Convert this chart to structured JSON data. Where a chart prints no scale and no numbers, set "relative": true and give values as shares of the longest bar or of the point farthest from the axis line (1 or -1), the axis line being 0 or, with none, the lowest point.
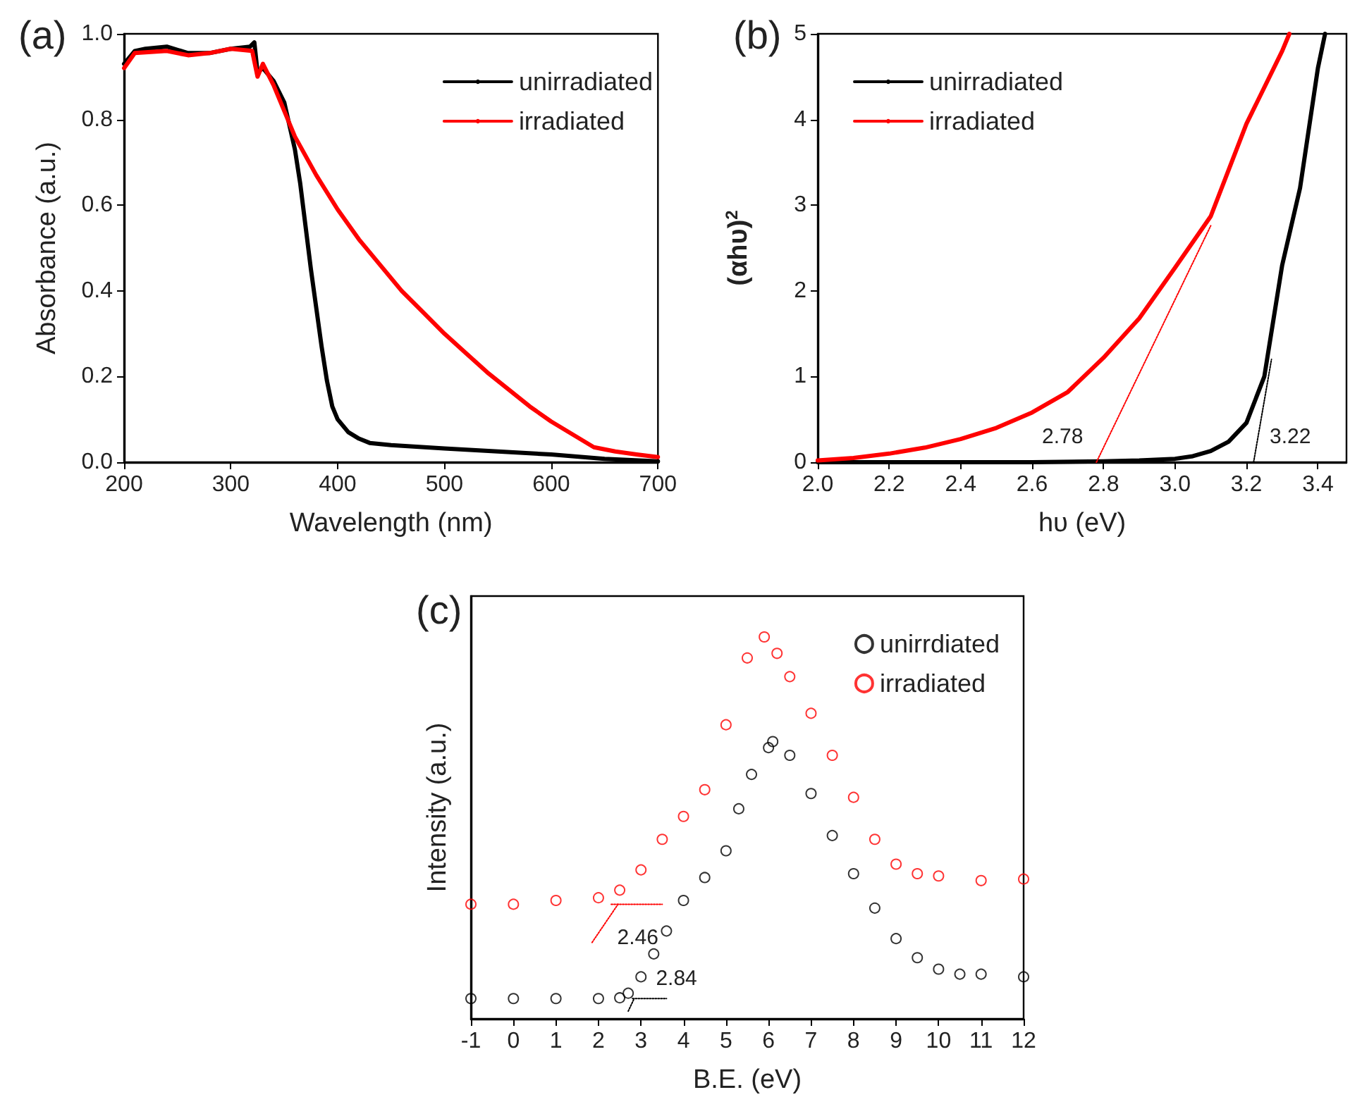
{
  "chart_data": [
    {
      "type": "line",
      "title": "(a)",
      "xlabel": "Wavelength (nm)",
      "ylabel": "Absorbance (a.u.)",
      "xlim": [
        200,
        700
      ],
      "ylim": [
        0,
        1.0
      ],
      "xticks": [
        200,
        300,
        400,
        500,
        600,
        700
      ],
      "yticks": [
        {
          "value": 0,
          "label": "0.0"
        },
        {
          "value": 0.2,
          "label": "0.2"
        },
        {
          "value": 0.4,
          "label": "0.4"
        },
        {
          "value": 0.6,
          "label": "0.6"
        },
        {
          "value": 0.8,
          "label": "0.8"
        },
        {
          "value": 1.0,
          "label": "1.0"
        }
      ],
      "legend": "top right",
      "series": [
        {
          "name": "unirradiated",
          "color": "#000000",
          "x": [
            200,
            210,
            220,
            240,
            260,
            280,
            300,
            318,
            322,
            325,
            330,
            340,
            350,
            360,
            365,
            370,
            375,
            380,
            385,
            390,
            395,
            400,
            410,
            420,
            430,
            450,
            500,
            550,
            600,
            650,
            700
          ],
          "values": [
            0.93,
            0.96,
            0.965,
            0.97,
            0.955,
            0.955,
            0.965,
            0.97,
            0.98,
            0.91,
            0.92,
            0.89,
            0.84,
            0.73,
            0.65,
            0.55,
            0.45,
            0.36,
            0.27,
            0.19,
            0.13,
            0.1,
            0.07,
            0.055,
            0.045,
            0.04,
            0.032,
            0.025,
            0.018,
            0.008,
            0.002
          ]
        },
        {
          "name": "irradiated",
          "color": "#ff0000",
          "x": [
            200,
            210,
            240,
            260,
            280,
            300,
            320,
            325,
            330,
            340,
            350,
            360,
            380,
            400,
            420,
            440,
            460,
            480,
            500,
            520,
            540,
            560,
            580,
            600,
            620,
            640,
            660,
            680,
            700
          ],
          "values": [
            0.92,
            0.955,
            0.96,
            0.95,
            0.955,
            0.965,
            0.96,
            0.9,
            0.93,
            0.88,
            0.82,
            0.76,
            0.67,
            0.59,
            0.52,
            0.46,
            0.4,
            0.35,
            0.3,
            0.255,
            0.21,
            0.17,
            0.13,
            0.095,
            0.065,
            0.035,
            0.025,
            0.018,
            0.012
          ]
        }
      ]
    },
    {
      "type": "line",
      "title": "(b)",
      "xlabel": "hυ (eV)",
      "ylabel": "(αhυ)$^{2}$",
      "xlim": [
        2.0,
        3.48
      ],
      "ylim": [
        0,
        5
      ],
      "xticks": [
        {
          "value": 2.0,
          "label": "2.0"
        },
        2.2,
        2.4,
        2.6,
        2.8,
        {
          "value": 3.0,
          "label": "3.0"
        },
        3.2,
        3.4
      ],
      "yticks": [
        0,
        1,
        2,
        3,
        4,
        5
      ],
      "legend": "top left",
      "annotations": [
        {
          "text": "2.78",
          "x": 2.78,
          "y": 0
        },
        {
          "text": "3.22",
          "x": 3.22,
          "y": 0
        }
      ],
      "series": [
        {
          "name": "unirradiated",
          "color": "#000000",
          "x": [
            2.0,
            2.6,
            2.8,
            2.9,
            3.0,
            3.05,
            3.1,
            3.15,
            3.2,
            3.25,
            3.3,
            3.35,
            3.4,
            3.42
          ],
          "values": [
            0,
            0,
            0.01,
            0.02,
            0.04,
            0.07,
            0.13,
            0.24,
            0.46,
            1.0,
            2.3,
            3.2,
            4.6,
            5.0
          ]
        },
        {
          "name": "irradiated",
          "color": "#ff0000",
          "x": [
            2.0,
            2.1,
            2.2,
            2.3,
            2.4,
            2.5,
            2.6,
            2.7,
            2.8,
            2.9,
            3.0,
            3.1,
            3.2,
            3.3,
            3.32
          ],
          "values": [
            0.02,
            0.05,
            0.1,
            0.17,
            0.27,
            0.4,
            0.58,
            0.82,
            1.22,
            1.68,
            2.27,
            2.87,
            3.95,
            4.8,
            5.0
          ]
        },
        {
          "type": "line",
          "line_style": "dotted",
          "color": "#ff0000",
          "x": [
            2.78,
            3.1
          ],
          "values": [
            0,
            2.76
          ]
        },
        {
          "type": "line",
          "line_style": "dotted",
          "color": "#000000",
          "x": [
            3.22,
            3.27
          ],
          "values": [
            0,
            1.2
          ]
        }
      ]
    },
    {
      "type": "scatter",
      "title": "(c)",
      "xlabel": "B.E. (eV)",
      "ylabel": "Intensity (a.u.)",
      "relative": true,
      "xlim": [
        -1,
        12
      ],
      "xticks": [
        -1,
        0,
        1,
        2,
        3,
        4,
        5,
        6,
        7,
        8,
        9,
        10,
        11,
        12
      ],
      "legend": "top right",
      "annotations": [
        {
          "text": "2.46",
          "x": 2.46,
          "y": 0.3
        },
        {
          "text": "2.84",
          "x": 2.84,
          "y": 0.053
        }
      ],
      "series": [
        {
          "name": "unirrdiated",
          "color": "#000000",
          "marker": "circle",
          "x": [
            -1,
            0,
            1,
            2,
            2.5,
            2.7,
            3.0,
            3.3,
            3.6,
            4.0,
            4.5,
            5.0,
            5.3,
            5.6,
            6.0,
            6.1,
            6.5,
            7.0,
            7.5,
            8.0,
            8.5,
            9.0,
            9.5,
            10,
            10.5,
            11,
            12
          ],
          "values": [
            0.053,
            0.053,
            0.053,
            0.053,
            0.055,
            0.067,
            0.11,
            0.17,
            0.23,
            0.31,
            0.37,
            0.44,
            0.55,
            0.64,
            0.71,
            0.726,
            0.69,
            0.59,
            0.48,
            0.38,
            0.29,
            0.21,
            0.16,
            0.13,
            0.117,
            0.117,
            0.11
          ]
        },
        {
          "name": "irradiated",
          "color": "#ff0000",
          "marker": "circle",
          "x": [
            -1,
            0,
            1,
            2,
            2.5,
            3,
            3.5,
            4,
            4.5,
            5,
            5.5,
            5.9,
            6.2,
            6.5,
            7,
            7.5,
            8,
            8.5,
            9,
            9.5,
            10,
            11,
            12
          ],
          "values": [
            0.3,
            0.3,
            0.31,
            0.317,
            0.337,
            0.39,
            0.47,
            0.53,
            0.6,
            0.77,
            0.945,
            1.0,
            0.957,
            0.896,
            0.8,
            0.69,
            0.58,
            0.47,
            0.405,
            0.38,
            0.374,
            0.362,
            0.366
          ]
        },
        {
          "type": "line",
          "line_style": "dotted",
          "color": "#ff0000",
          "x": [
            2.3,
            3.5
          ],
          "values": [
            0.3,
            0.3
          ]
        },
        {
          "type": "line",
          "line_style": "dotted",
          "color": "#ff0000",
          "x": [
            1.85,
            2.46
          ],
          "values": [
            0.2,
            0.3
          ]
        },
        {
          "type": "line",
          "line_style": "dotted",
          "color": "#000000",
          "x": [
            2.8,
            3.6
          ],
          "values": [
            0.053,
            0.053
          ]
        },
        {
          "type": "line",
          "line_style": "dotted",
          "color": "#000000",
          "x": [
            2.7,
            2.84
          ],
          "values": [
            0.02,
            0.053
          ]
        }
      ]
    }
  ]
}
